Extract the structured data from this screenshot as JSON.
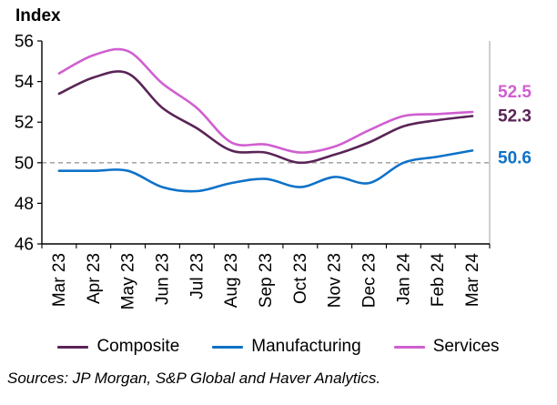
{
  "title": "Index",
  "source_note": "Sources: JP Morgan, S&P Global and Haver Analytics.",
  "chart_data": {
    "type": "line",
    "title": "Index",
    "categories": [
      "Mar 23",
      "Apr 23",
      "May 23",
      "Jun 23",
      "Jul 23",
      "Aug 23",
      "Sep 23",
      "Oct 23",
      "Nov 23",
      "Dec 23",
      "Jan 24",
      "Feb 24",
      "Mar 24"
    ],
    "series": [
      {
        "name": "Composite",
        "color": "#5a2457",
        "end_label": "52.3",
        "values": [
          53.4,
          54.2,
          54.4,
          52.7,
          51.7,
          50.6,
          50.5,
          50.0,
          50.4,
          51.0,
          51.8,
          52.1,
          52.3
        ]
      },
      {
        "name": "Manufacturing",
        "color": "#0e72c8",
        "end_label": "50.6",
        "values": [
          49.6,
          49.6,
          49.6,
          48.8,
          48.6,
          49.0,
          49.2,
          48.8,
          49.3,
          49.0,
          50.0,
          50.3,
          50.6
        ]
      },
      {
        "name": "Services",
        "color": "#d05fd0",
        "end_label": "52.5",
        "values": [
          54.4,
          55.3,
          55.5,
          53.9,
          52.7,
          51.0,
          50.9,
          50.5,
          50.8,
          51.6,
          52.3,
          52.4,
          52.5
        ]
      }
    ],
    "ylim": [
      46,
      56
    ],
    "ytick_step": 2,
    "yticks": [
      "46",
      "48",
      "50",
      "52",
      "54",
      "56"
    ],
    "reference_line": {
      "value": 50,
      "style": "dashed",
      "color": "#999999"
    },
    "legend_position": "bottom",
    "grid": false,
    "axis_color": "#000000",
    "right_border_color": "#bfbfbf"
  }
}
